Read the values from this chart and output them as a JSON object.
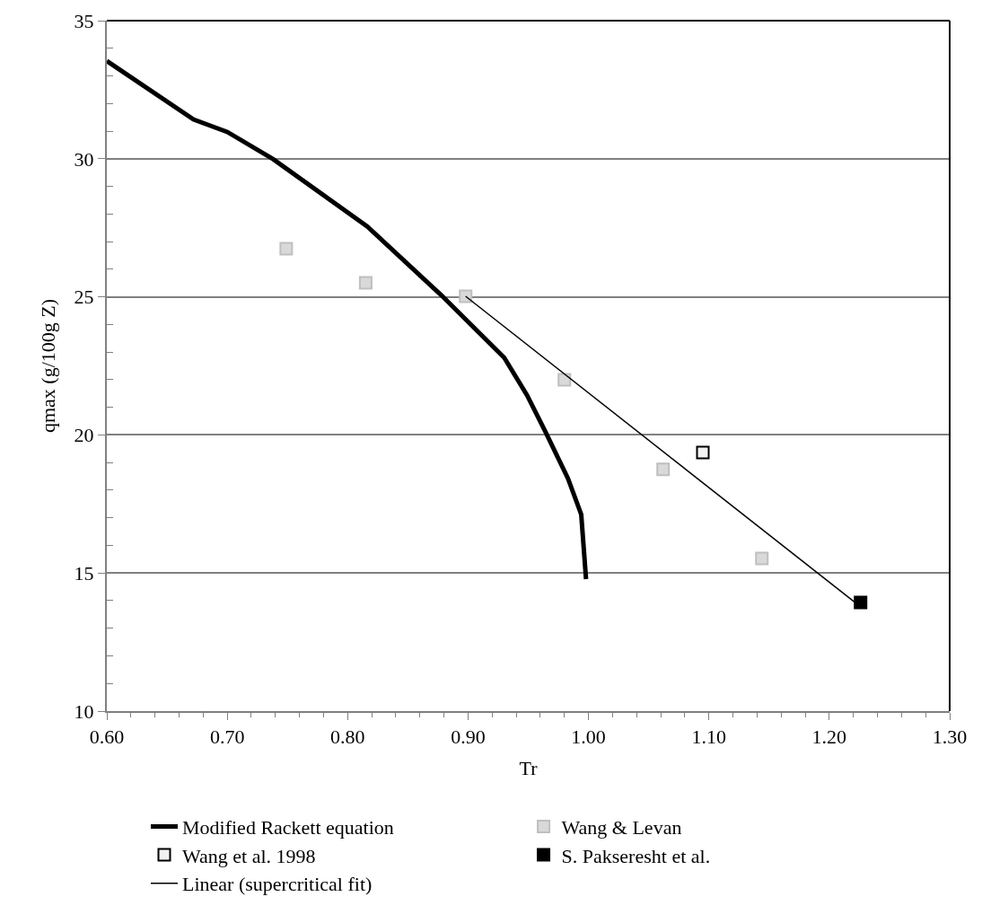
{
  "chart_data": {
    "type": "scatter",
    "xlabel": "Tr",
    "ylabel": "qmax (g/100g Z)",
    "xlim": [
      0.6,
      1.3
    ],
    "xticks": [
      {
        "value": 0.6,
        "label": "0.60"
      },
      {
        "value": 0.7,
        "label": "0.70"
      },
      {
        "value": 0.8,
        "label": "0.80"
      },
      {
        "value": 0.9,
        "label": "0.90"
      },
      {
        "value": 1.0,
        "label": "1.00"
      },
      {
        "value": 1.1,
        "label": "1.10"
      },
      {
        "value": 1.2,
        "label": "1.20"
      },
      {
        "value": 1.3,
        "label": "1.30"
      }
    ],
    "ylim": [
      10,
      35
    ],
    "yticks": [
      10,
      15,
      20,
      25,
      30,
      35
    ],
    "grid": "y",
    "legend": "bottom",
    "series": [
      {
        "name": "Modified Rackett equation",
        "type": "line",
        "marker": "none",
        "color": "#000000",
        "x": [
          0.6,
          0.672,
          0.7,
          0.738,
          0.816,
          0.878,
          0.93,
          0.949,
          0.964,
          0.983,
          0.994,
          0.998
        ],
        "values": [
          33.54,
          31.42,
          30.97,
          29.99,
          27.56,
          25.05,
          22.8,
          21.44,
          20.14,
          18.42,
          17.12,
          14.78
        ]
      },
      {
        "name": "Wang & Levan",
        "marker": "square",
        "color": "#d9d9d9",
        "x": [
          0.749,
          0.815,
          0.898,
          0.98,
          1.062,
          1.144
        ],
        "values": [
          26.74,
          25.51,
          25.02,
          22.0,
          18.75,
          15.53
        ]
      },
      {
        "name": "Wang et al. 1998",
        "marker": "square",
        "color": "#f2f2f2",
        "x": [
          1.095
        ],
        "values": [
          19.36
        ]
      },
      {
        "name": "S. Pakseresht et al.",
        "marker": "square",
        "color": "#000000",
        "x": [
          1.226
        ],
        "values": [
          13.93
        ]
      },
      {
        "name": "Linear (supercritical fit)",
        "type": "line",
        "marker": "none",
        "color": "#000000",
        "x": [
          0.898,
          1.227
        ],
        "values": [
          25.02,
          13.74
        ]
      }
    ]
  }
}
